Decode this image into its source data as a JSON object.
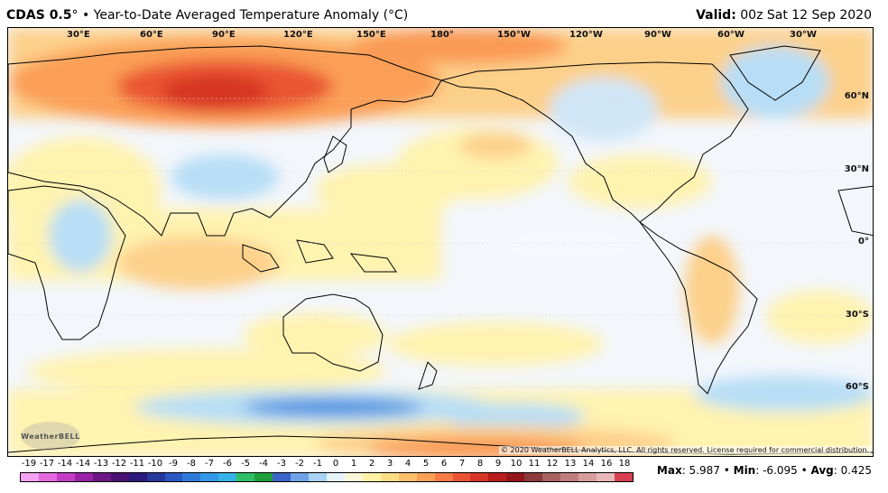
{
  "header": {
    "model": "CDAS 0.5",
    "degree": "°",
    "bullet": "•",
    "title": "Year-to-Date Averaged Temperature Anomaly (°C)",
    "valid_label": "Valid:",
    "valid_value": "00z Sat 12 Sep 2020"
  },
  "map": {
    "longitude_labels": [
      "30°E",
      "60°E",
      "90°E",
      "120°E",
      "150°E",
      "180°",
      "150°W",
      "120°W",
      "90°W",
      "60°W",
      "30°W"
    ],
    "latitude_labels": [
      "60°N",
      "30°N",
      "0°",
      "30°S",
      "60°S"
    ],
    "logo_text": "WeatherBELL",
    "copyright": "© 2020 WeatherBELL Analytics, LLC. All rights reserved. License required for commercial distribution."
  },
  "legend": {
    "ticks": [
      "-19",
      "-17",
      "-14",
      "-14",
      "-13",
      "-12",
      "-11",
      "-10",
      "-9",
      "-8",
      "-7",
      "-6",
      "-5",
      "-4",
      "-3",
      "-2",
      "-1",
      "0",
      "1",
      "2",
      "3",
      "4",
      "5",
      "6",
      "7",
      "8",
      "9",
      "10",
      "11",
      "12",
      "13",
      "14",
      "16",
      "18"
    ],
    "colors": [
      "#f6a2f2",
      "#e56ae0",
      "#c23cc8",
      "#9a22a8",
      "#6f1686",
      "#4a1275",
      "#2d1a7e",
      "#26389c",
      "#2a57c4",
      "#2f7ad9",
      "#3398e6",
      "#35b2e8",
      "#2fbf66",
      "#1f9e3e",
      "#3a64c8",
      "#6fa2e6",
      "#a9d2f4",
      "#e6f3fb",
      "#fbf8d8",
      "#fef2a6",
      "#fede84",
      "#fdc06a",
      "#fb9f57",
      "#f67c45",
      "#ea5433",
      "#d63424",
      "#b81e1b",
      "#94161a",
      "#8c3a3a",
      "#a86060",
      "#c07d7d",
      "#d69d9d",
      "#e8b8b8",
      "#d64050"
    ]
  },
  "stats": {
    "max_label": "Max",
    "max_value": "5.987",
    "min_label": "Min",
    "min_value": "-6.095",
    "avg_label": "Avg",
    "avg_value": "0.425"
  },
  "colors": {
    "warm_strong": "#e8451e",
    "warm": "#fa9a55",
    "warm_light": "#fdd08a",
    "neutral_warm": "#fff3b0",
    "neutral_cool": "#f3f6fb",
    "cool": "#b7def6",
    "cool_strong": "#4c8fe0"
  }
}
